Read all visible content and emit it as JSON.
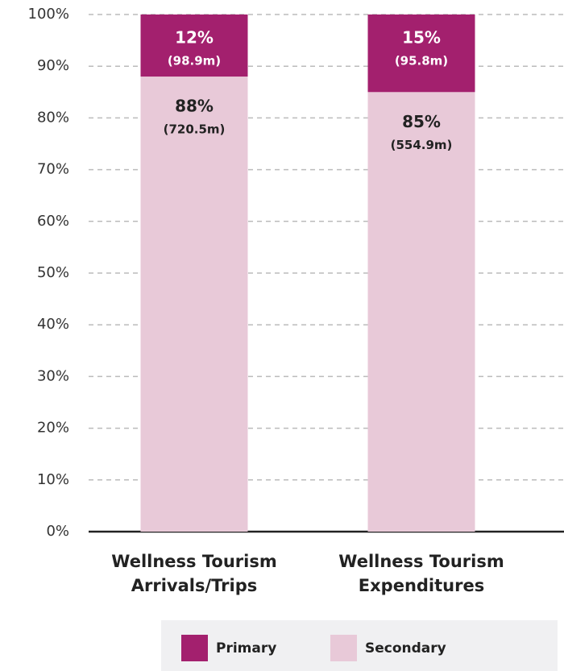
{
  "chart_data": {
    "type": "stacked_bar",
    "categories": [
      "Wellness Tourism Arrivals/Trips",
      "Wellness Tourism Expenditures"
    ],
    "series": [
      {
        "name": "Secondary",
        "color": "#e8c9d8",
        "values": [
          88,
          85
        ],
        "value_labels": [
          "88%",
          "85%"
        ],
        "amount_labels": [
          "(720.5m)",
          "(554.9m)"
        ]
      },
      {
        "name": "Primary",
        "color": "#a3206e",
        "values": [
          12,
          15
        ],
        "value_labels": [
          "12%",
          "15%"
        ],
        "amount_labels": [
          "(98.9m)",
          "(95.8m)"
        ]
      }
    ],
    "ylim": [
      0,
      100
    ],
    "yticks": [
      {
        "value": 0,
        "label": "0%"
      },
      {
        "value": 10,
        "label": "10%"
      },
      {
        "value": 20,
        "label": "20%"
      },
      {
        "value": 30,
        "label": "30%"
      },
      {
        "value": 40,
        "label": "40%"
      },
      {
        "value": 50,
        "label": "50%"
      },
      {
        "value": 60,
        "label": "60%"
      },
      {
        "value": 70,
        "label": "70%"
      },
      {
        "value": 80,
        "label": "80%"
      },
      {
        "value": 90,
        "label": "90%"
      },
      {
        "value": 100,
        "label": "100%"
      }
    ],
    "grid": true
  }
}
